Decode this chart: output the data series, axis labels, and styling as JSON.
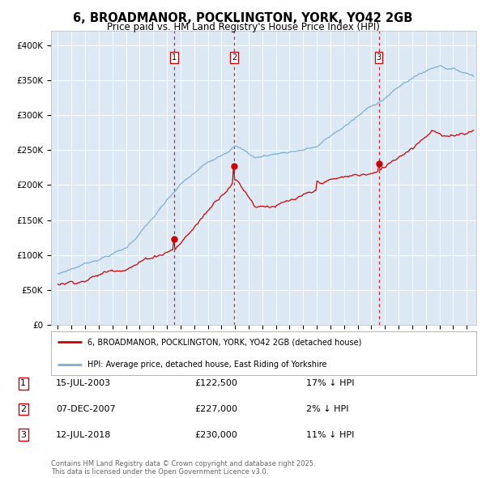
{
  "title": "6, BROADMANOR, POCKLINGTON, YORK, YO42 2GB",
  "subtitle": "Price paid vs. HM Land Registry's House Price Index (HPI)",
  "title_fontsize": 10.5,
  "subtitle_fontsize": 8.5,
  "background_color": "#ffffff",
  "plot_bg_color": "#dce9f5",
  "grid_color": "#ffffff",
  "red_line_color": "#cc0000",
  "blue_line_color": "#7ab0d4",
  "vline_color": "#cc0000",
  "ylim": [
    0,
    420000
  ],
  "yticks": [
    0,
    50000,
    100000,
    150000,
    200000,
    250000,
    300000,
    350000,
    400000
  ],
  "ytick_labels": [
    "£0",
    "£50K",
    "£100K",
    "£150K",
    "£200K",
    "£250K",
    "£300K",
    "£350K",
    "£400K"
  ],
  "legend_label_red": "6, BROADMANOR, POCKLINGTON, YORK, YO42 2GB (detached house)",
  "legend_label_blue": "HPI: Average price, detached house, East Riding of Yorkshire",
  "transactions": [
    {
      "label": "1",
      "date": "15-JUL-2003",
      "price": 122500,
      "pct": "17%",
      "dir": "↓",
      "x_year": 2003.54
    },
    {
      "label": "2",
      "date": "07-DEC-2007",
      "price": 227000,
      "pct": "2%",
      "dir": "↓",
      "x_year": 2007.93
    },
    {
      "label": "3",
      "date": "12-JUL-2018",
      "price": 230000,
      "pct": "11%",
      "dir": "↓",
      "x_year": 2018.54
    }
  ],
  "footnote": "Contains HM Land Registry data © Crown copyright and database right 2025.\nThis data is licensed under the Open Government Licence v3.0.",
  "footnote_fontsize": 6.0,
  "xlim_start": 1994.5,
  "xlim_end": 2025.7,
  "marker_prices": [
    122500,
    227000,
    230000
  ]
}
